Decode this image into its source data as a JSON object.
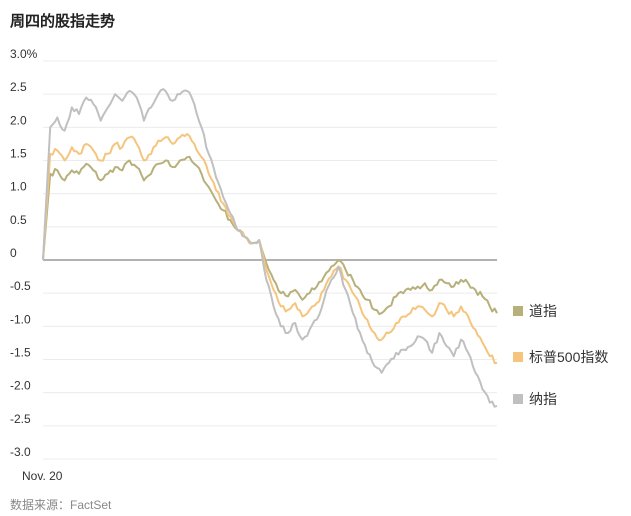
{
  "title": "周四的股指走势",
  "source": "数据来源：FactSet",
  "chart_data": {
    "type": "line",
    "xlabel": "",
    "ylabel": "",
    "x_tick_labels": [
      "Nov. 20"
    ],
    "y_ticks": [
      3.0,
      2.5,
      2.0,
      1.5,
      1.0,
      0.5,
      0,
      -0.5,
      -1.0,
      -1.5,
      -2.0,
      -2.5,
      -3.0
    ],
    "y_tick_labels": [
      "3.0%",
      "2.5",
      "2.0",
      "1.5",
      "1.0",
      "0.5",
      "0",
      "-0.5",
      "-1.0",
      "-1.5",
      "-2.0",
      "-2.5",
      "-3.0"
    ],
    "ylim": [
      -3.0,
      3.0
    ],
    "grid": true,
    "legend_position": "right",
    "series": [
      {
        "name": "道指",
        "color": "#b8b07a",
        "values": [
          0,
          1.3,
          1.35,
          1.2,
          1.35,
          1.3,
          1.45,
          1.35,
          1.2,
          1.3,
          1.4,
          1.35,
          1.5,
          1.4,
          1.2,
          1.3,
          1.45,
          1.5,
          1.4,
          1.5,
          1.55,
          1.45,
          1.3,
          1.1,
          0.9,
          0.75,
          0.6,
          0.45,
          0.35,
          0.25,
          0.3,
          -0.05,
          -0.3,
          -0.5,
          -0.55,
          -0.45,
          -0.6,
          -0.5,
          -0.4,
          -0.25,
          -0.1,
          0.0,
          -0.15,
          -0.3,
          -0.45,
          -0.6,
          -0.75,
          -0.8,
          -0.7,
          -0.55,
          -0.5,
          -0.45,
          -0.4,
          -0.35,
          -0.45,
          -0.3,
          -0.35,
          -0.4,
          -0.3,
          -0.35,
          -0.45,
          -0.55,
          -0.7,
          -0.8
        ]
      },
      {
        "name": "标普500指数",
        "color": "#f5c57e",
        "values": [
          0,
          1.6,
          1.65,
          1.5,
          1.7,
          1.6,
          1.75,
          1.65,
          1.5,
          1.6,
          1.75,
          1.7,
          1.85,
          1.75,
          1.5,
          1.6,
          1.8,
          1.85,
          1.75,
          1.85,
          1.9,
          1.75,
          1.55,
          1.3,
          1.05,
          0.85,
          0.65,
          0.45,
          0.35,
          0.25,
          0.3,
          -0.15,
          -0.45,
          -0.7,
          -0.75,
          -0.65,
          -0.85,
          -0.75,
          -0.65,
          -0.45,
          -0.25,
          -0.1,
          -0.3,
          -0.5,
          -0.7,
          -0.9,
          -1.1,
          -1.2,
          -1.1,
          -0.95,
          -0.85,
          -0.8,
          -0.7,
          -0.75,
          -0.85,
          -0.65,
          -0.75,
          -0.85,
          -0.7,
          -0.85,
          -1.05,
          -1.25,
          -1.45,
          -1.55
        ]
      },
      {
        "name": "纳指",
        "color": "#c0c0c0",
        "values": [
          0,
          2.0,
          2.15,
          1.95,
          2.3,
          2.2,
          2.45,
          2.35,
          2.1,
          2.3,
          2.5,
          2.4,
          2.55,
          2.45,
          2.1,
          2.3,
          2.5,
          2.55,
          2.4,
          2.5,
          2.55,
          2.35,
          2.0,
          1.6,
          1.25,
          0.95,
          0.7,
          0.45,
          0.35,
          0.25,
          0.3,
          -0.3,
          -0.7,
          -1.0,
          -1.1,
          -0.95,
          -1.2,
          -1.05,
          -0.9,
          -0.6,
          -0.3,
          -0.1,
          -0.45,
          -0.8,
          -1.1,
          -1.4,
          -1.6,
          -1.7,
          -1.55,
          -1.4,
          -1.35,
          -1.3,
          -1.15,
          -1.2,
          -1.4,
          -1.1,
          -1.3,
          -1.45,
          -1.2,
          -1.4,
          -1.7,
          -1.95,
          -2.15,
          -2.2
        ]
      }
    ]
  }
}
